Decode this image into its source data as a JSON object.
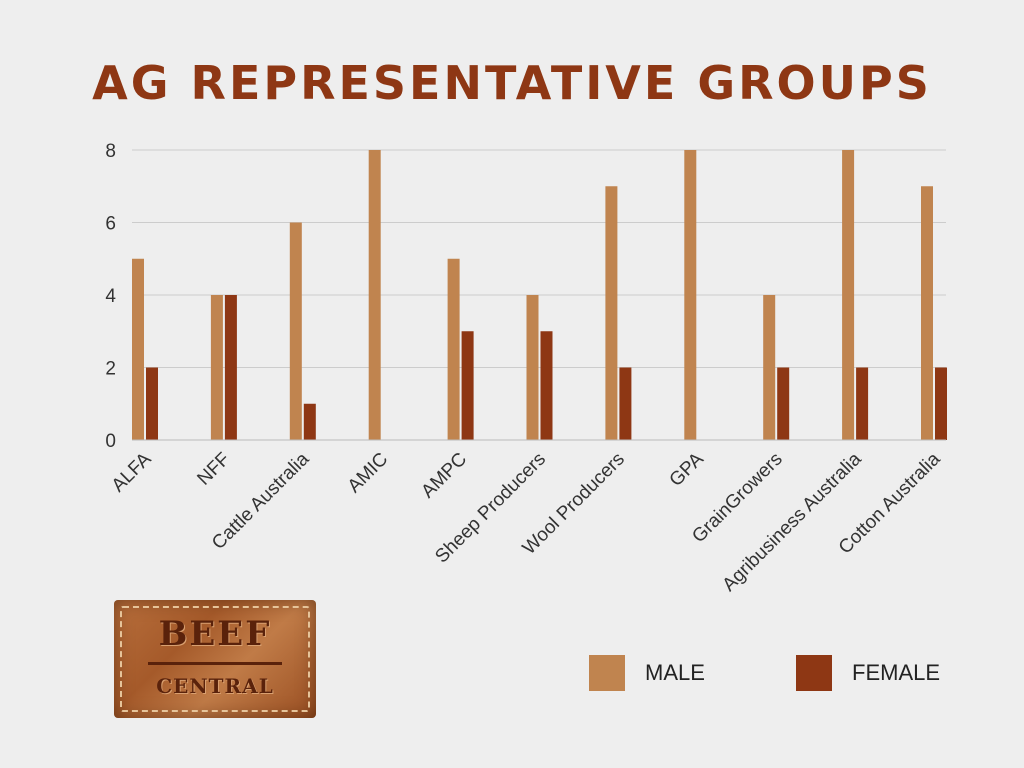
{
  "title": "AG REPRESENTATIVE GROUPS",
  "logo": {
    "top": "BEEF",
    "mid": "",
    "bottom": "CENTRAL"
  },
  "colors": {
    "male": "#c0844f",
    "female": "#8e3714",
    "title": "#8e3714",
    "grid": "#cccccc",
    "axis_text": "#333333"
  },
  "legend": {
    "male": "MALE",
    "female": "FEMALE"
  },
  "chart_data": {
    "type": "bar",
    "title": "AG REPRESENTATIVE GROUPS",
    "xlabel": "",
    "ylabel": "",
    "ylim": [
      0,
      8
    ],
    "yticks": [
      0,
      2,
      4,
      6,
      8
    ],
    "grid": true,
    "legend_position": "bottom-right",
    "categories": [
      "ALFA",
      "NFF",
      "Cattle Australia",
      "AMIC",
      "AMPC",
      "Sheep Producers",
      "Wool Producers",
      "GPA",
      "GrainGrowers",
      "Agribusiness Australia",
      "Cotton Australia"
    ],
    "series": [
      {
        "name": "MALE",
        "values": [
          5,
          4,
          6,
          8,
          5,
          4,
          7,
          8,
          4,
          8,
          7
        ]
      },
      {
        "name": "FEMALE",
        "values": [
          2,
          4,
          1,
          0,
          3,
          3,
          2,
          0,
          2,
          2,
          2
        ]
      }
    ]
  }
}
